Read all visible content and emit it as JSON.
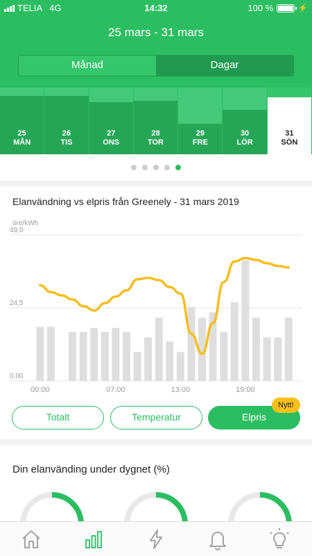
{
  "status": {
    "carrier": "TELIA",
    "network": "4G",
    "time": "14:32",
    "battery": "100 %"
  },
  "header": {
    "date_range": "25 mars - 31 mars"
  },
  "view_toggle": {
    "options": [
      "Månad",
      "Dagar"
    ],
    "selected": "Dagar"
  },
  "days": [
    {
      "num": "25",
      "name": "MÅN",
      "level": 0.88
    },
    {
      "num": "26",
      "name": "TIS",
      "level": 0.88
    },
    {
      "num": "27",
      "name": "ONS",
      "level": 0.78
    },
    {
      "num": "28",
      "name": "TOR",
      "level": 0.8
    },
    {
      "num": "29",
      "name": "FRE",
      "level": 0.46
    },
    {
      "num": "30",
      "name": "LÖR",
      "level": 0.67
    },
    {
      "num": "31",
      "name": "SÖN",
      "level": 1.0,
      "selected": true
    }
  ],
  "pager": {
    "count": 5,
    "active": 4
  },
  "chart_card": {
    "title": "Elanvändning vs elpris från Greenely - 31 mars 2019",
    "unit": "öre/kWh"
  },
  "chart_data": {
    "type": "bar+line",
    "ylim": [
      0,
      49
    ],
    "yticks": [
      "0,00",
      "24,5",
      "49,0"
    ],
    "ytick_values": [
      0,
      24.5,
      49
    ],
    "xticks": [
      "00:00",
      "07:00",
      "13:00",
      "19:00"
    ],
    "xtick_hours": [
      0,
      7,
      13,
      19
    ],
    "hours": 24,
    "series": [
      {
        "type": "bar",
        "color": "#dedede",
        "values": [
          18.1,
          18.1,
          0,
          16.4,
          16.4,
          17.8,
          16.4,
          17.8,
          16.4,
          9.7,
          14.6,
          21.2,
          13.2,
          9.7,
          24.8,
          21.2,
          23.0,
          16.4,
          26.4,
          40.5,
          21.2,
          14.6,
          14.6,
          21.2
        ]
      },
      {
        "type": "line",
        "color": "#f5bd1f",
        "values": [
          32.1,
          29.8,
          28.7,
          27.3,
          25.1,
          23.6,
          26.1,
          28.3,
          30.4,
          34.1,
          34.6,
          33.8,
          31.5,
          29.3,
          15.8,
          9.1,
          19.4,
          33.2,
          40.1,
          41.2,
          40.6,
          39.5,
          38.6,
          38.1
        ],
        "x_offset": 0.5
      }
    ]
  },
  "filters": [
    {
      "label": "Totalt",
      "active": false
    },
    {
      "label": "Temperatur",
      "active": false
    },
    {
      "label": "Elpris",
      "active": true,
      "badge": "Nytt!"
    }
  ],
  "usage_card": {
    "title": "Din elanvänding under dygnet (%)",
    "donuts": [
      0.25,
      0.24,
      0.24
    ]
  },
  "colors": {
    "brand": "#2bbd62",
    "price_line": "#f5bd1f",
    "bars": "#dedede",
    "badge": "#f6bf1a"
  },
  "tabs": [
    {
      "icon": "home-icon"
    },
    {
      "icon": "bar-chart-icon",
      "active": true
    },
    {
      "icon": "lightning-icon"
    },
    {
      "icon": "bell-icon"
    },
    {
      "icon": "lightbulb-icon"
    }
  ]
}
